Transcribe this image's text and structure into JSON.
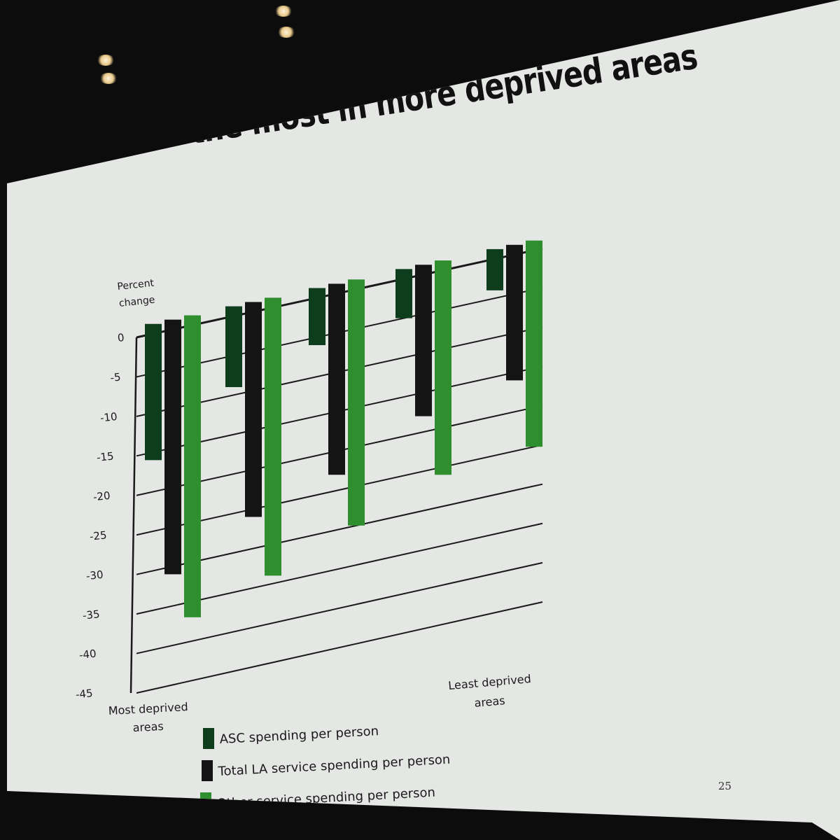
{
  "slide": {
    "title": "Council spending per person decreased the most in more deprived areas",
    "number": "25"
  },
  "colors": {
    "asc": "#0d3d1c",
    "total": "#141414",
    "other": "#2f8f2f",
    "screen": "#e4e7e4",
    "grid": "#1a1a1a"
  },
  "chart_data": {
    "type": "bar",
    "ylabel": "Percent change",
    "ylim": [
      -45,
      0
    ],
    "yticks": [
      "0",
      "-5",
      "-10",
      "-15",
      "-20",
      "-25",
      "-30",
      "-35",
      "-40",
      "-45"
    ],
    "grid": true,
    "category_labels": {
      "first": "Most deprived areas",
      "last": "Least deprived areas"
    },
    "categories": [
      "1",
      "2",
      "3",
      "4",
      "5"
    ],
    "series": [
      {
        "name": "ASC spending per person",
        "values": [
          -16,
          -9,
          -6,
          -5,
          -4
        ]
      },
      {
        "name": "Total LA service spending per person",
        "values": [
          -31,
          -26,
          -23,
          -18,
          -16
        ]
      },
      {
        "name": "Other service spending per person",
        "values": [
          -37,
          -34,
          -30,
          -26,
          -25
        ]
      }
    ],
    "legend_position": "bottom-left"
  }
}
